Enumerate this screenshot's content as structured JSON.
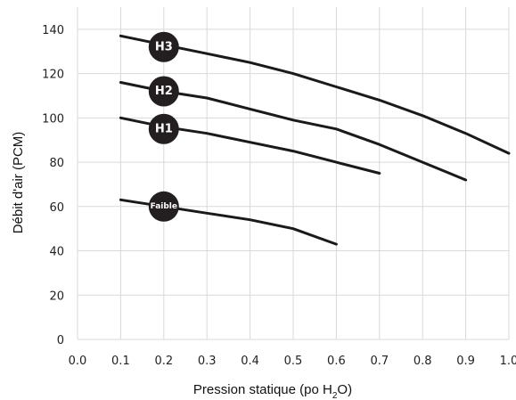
{
  "chart_data": {
    "type": "line",
    "xlabel_main": "Pression statique (po H",
    "xlabel_sub": "2",
    "xlabel_tail": "O)",
    "ylabel": "Débit d'air (PCM)",
    "xlim": [
      0,
      1.0
    ],
    "ylim": [
      0,
      150
    ],
    "x_ticks": [
      0.0,
      0.1,
      0.2,
      0.3,
      0.4,
      0.5,
      0.6,
      0.7,
      0.8,
      0.9,
      1.0
    ],
    "x_tick_labels": [
      "0.0",
      "0.1",
      "0.2",
      "0.3",
      "0.4",
      "0.5",
      "0.6",
      "0.7",
      "0.8",
      "0.9",
      "1.0"
    ],
    "y_ticks": [
      0,
      20,
      40,
      60,
      80,
      100,
      120,
      140
    ],
    "y_tick_labels": [
      "0",
      "20",
      "40",
      "60",
      "80",
      "100",
      "120",
      "140"
    ],
    "grid": true,
    "series": [
      {
        "name": "H3",
        "label_at": [
          0.2,
          132
        ],
        "points": [
          [
            0.1,
            137
          ],
          [
            0.2,
            133
          ],
          [
            0.3,
            129
          ],
          [
            0.4,
            125
          ],
          [
            0.5,
            120
          ],
          [
            0.6,
            114
          ],
          [
            0.7,
            108
          ],
          [
            0.8,
            101
          ],
          [
            0.9,
            93
          ],
          [
            1.0,
            84
          ]
        ]
      },
      {
        "name": "H2",
        "label_at": [
          0.2,
          112
        ],
        "points": [
          [
            0.1,
            116
          ],
          [
            0.2,
            112
          ],
          [
            0.3,
            109
          ],
          [
            0.4,
            104
          ],
          [
            0.5,
            99
          ],
          [
            0.6,
            95
          ],
          [
            0.7,
            88
          ],
          [
            0.8,
            80
          ],
          [
            0.9,
            72
          ]
        ]
      },
      {
        "name": "H1",
        "label_at": [
          0.2,
          95
        ],
        "points": [
          [
            0.1,
            100
          ],
          [
            0.2,
            96
          ],
          [
            0.3,
            93
          ],
          [
            0.4,
            89
          ],
          [
            0.5,
            85
          ],
          [
            0.6,
            80
          ],
          [
            0.7,
            75
          ]
        ]
      },
      {
        "name": "Faible",
        "label_at": [
          0.2,
          60
        ],
        "points": [
          [
            0.1,
            63
          ],
          [
            0.2,
            60
          ],
          [
            0.3,
            57
          ],
          [
            0.4,
            54
          ],
          [
            0.5,
            50
          ],
          [
            0.6,
            43
          ]
        ]
      }
    ],
    "colors": {
      "line": "#1a1a1a",
      "grid": "#d9d9d9",
      "badge": "#231f20",
      "badge_text": "#ffffff"
    }
  }
}
